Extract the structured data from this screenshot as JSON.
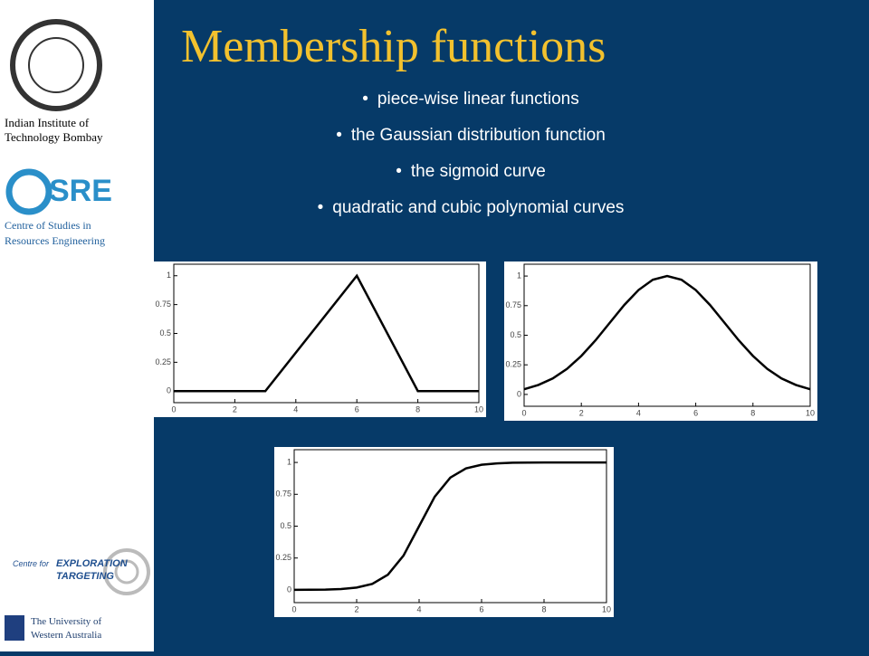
{
  "title": "Membership functions",
  "sidebar": {
    "institute": [
      "Indian Institute of",
      "Technology Bombay"
    ],
    "csre_logo": "SRE",
    "csre": [
      "Centre of Studies in",
      "Resources Engineering"
    ],
    "cet": [
      "Centre for",
      "EXPLORATION",
      "TARGETING"
    ],
    "uwa": [
      "The University of",
      "Western Australia"
    ]
  },
  "bullets": [
    "piece-wise linear functions",
    "the Gaussian distribution function",
    "the sigmoid curve",
    "quadratic and cubic polynomial curves"
  ],
  "chart_data": [
    {
      "type": "line",
      "x": [
        0,
        3,
        6,
        8,
        10
      ],
      "values": [
        0,
        0,
        1,
        0,
        0
      ],
      "xlim": [
        0,
        10
      ],
      "ylim": [
        -0.1,
        1.1
      ],
      "xticks": [
        0,
        2,
        4,
        6,
        8,
        10
      ],
      "yticks": [
        0,
        0.25,
        0.5,
        0.75,
        1
      ],
      "color": "#000000"
    },
    {
      "type": "line",
      "x": [
        0,
        0.5,
        1,
        1.5,
        2,
        2.5,
        3,
        3.5,
        4,
        4.5,
        5,
        5.5,
        6,
        6.5,
        7,
        7.5,
        8,
        8.5,
        9,
        9.5,
        10
      ],
      "values": [
        0.044,
        0.08,
        0.135,
        0.216,
        0.325,
        0.458,
        0.607,
        0.755,
        0.882,
        0.969,
        1,
        0.969,
        0.882,
        0.755,
        0.607,
        0.458,
        0.325,
        0.216,
        0.135,
        0.08,
        0.044
      ],
      "xlim": [
        0,
        10
      ],
      "ylim": [
        -0.1,
        1.1
      ],
      "xticks": [
        0,
        2,
        4,
        6,
        8,
        10
      ],
      "yticks": [
        0,
        0.25,
        0.5,
        0.75,
        1
      ],
      "color": "#000000"
    },
    {
      "type": "line",
      "x": [
        0,
        1,
        1.5,
        2,
        2.5,
        3,
        3.5,
        4,
        4.5,
        5,
        5.5,
        6,
        6.5,
        7,
        8,
        10
      ],
      "values": [
        0,
        0.0025,
        0.0067,
        0.018,
        0.047,
        0.119,
        0.269,
        0.5,
        0.731,
        0.881,
        0.953,
        0.982,
        0.993,
        0.998,
        1,
        1
      ],
      "xlim": [
        0,
        10
      ],
      "ylim": [
        -0.1,
        1.1
      ],
      "xticks": [
        0,
        2,
        4,
        6,
        8,
        10
      ],
      "yticks": [
        0,
        0.25,
        0.5,
        0.75,
        1
      ],
      "color": "#000000"
    }
  ]
}
